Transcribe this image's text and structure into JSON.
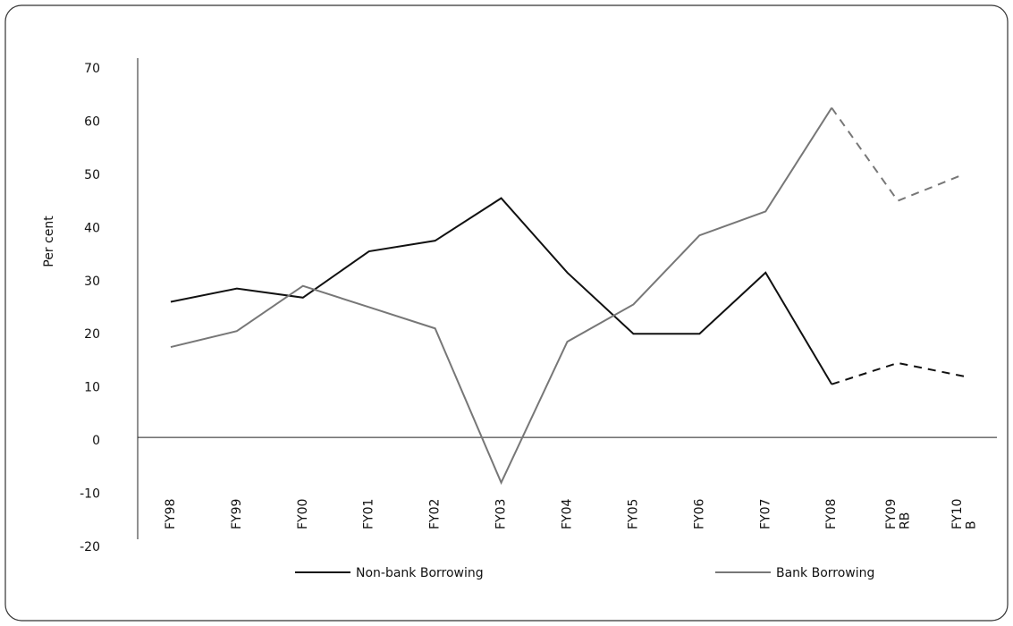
{
  "chart_data": {
    "type": "line",
    "y_label": "Per cent",
    "categories": [
      "FY98",
      "FY99",
      "FY00",
      "FY01",
      "FY02",
      "FY03",
      "FY04",
      "FY05",
      "FY06",
      "FY07",
      "FY08",
      "FY09 RB",
      "FY10 B"
    ],
    "series": [
      {
        "name": "Non-bank Borrowing",
        "color": "#111111",
        "dashed_from": 10,
        "values": [
          25.5,
          28,
          26.3,
          35,
          37,
          45,
          31,
          19.5,
          19.5,
          31,
          10,
          14,
          11.5
        ]
      },
      {
        "name": "Bank Borrowing",
        "color": "#777777",
        "dashed_from": 10,
        "values": [
          17,
          20,
          28.5,
          24.5,
          20.5,
          -8.5,
          18,
          25,
          38,
          42.5,
          62,
          44.5,
          49.5
        ]
      }
    ],
    "ylim": [
      -20,
      70
    ],
    "yticks": [
      -20,
      -10,
      0,
      10,
      20,
      30,
      40,
      50,
      60,
      70
    ],
    "grid": false,
    "legend": "bottom"
  }
}
